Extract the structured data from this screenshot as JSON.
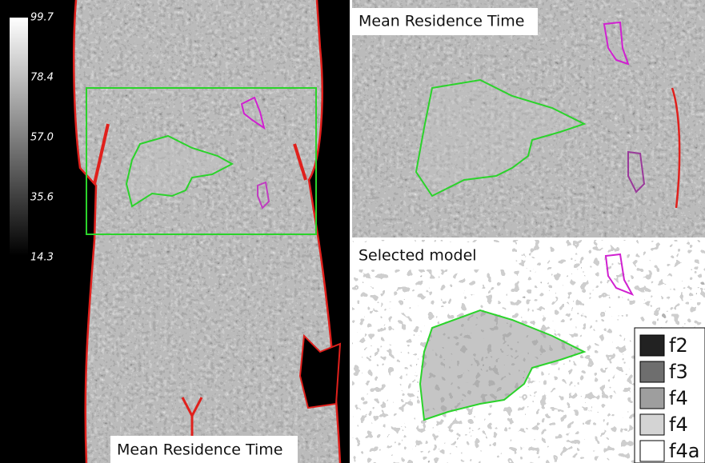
{
  "colorbar": {
    "labels": [
      "99.7",
      "78.4",
      "57.0",
      "35.6",
      "14.3"
    ]
  },
  "panels": [
    {
      "title": "Mean Residence Time"
    },
    {
      "title": "Mean Residence Time"
    },
    {
      "title": "Selected model"
    }
  ],
  "legend": {
    "items": [
      "f2",
      "f3",
      "f4",
      "f4",
      "f4a"
    ]
  }
}
